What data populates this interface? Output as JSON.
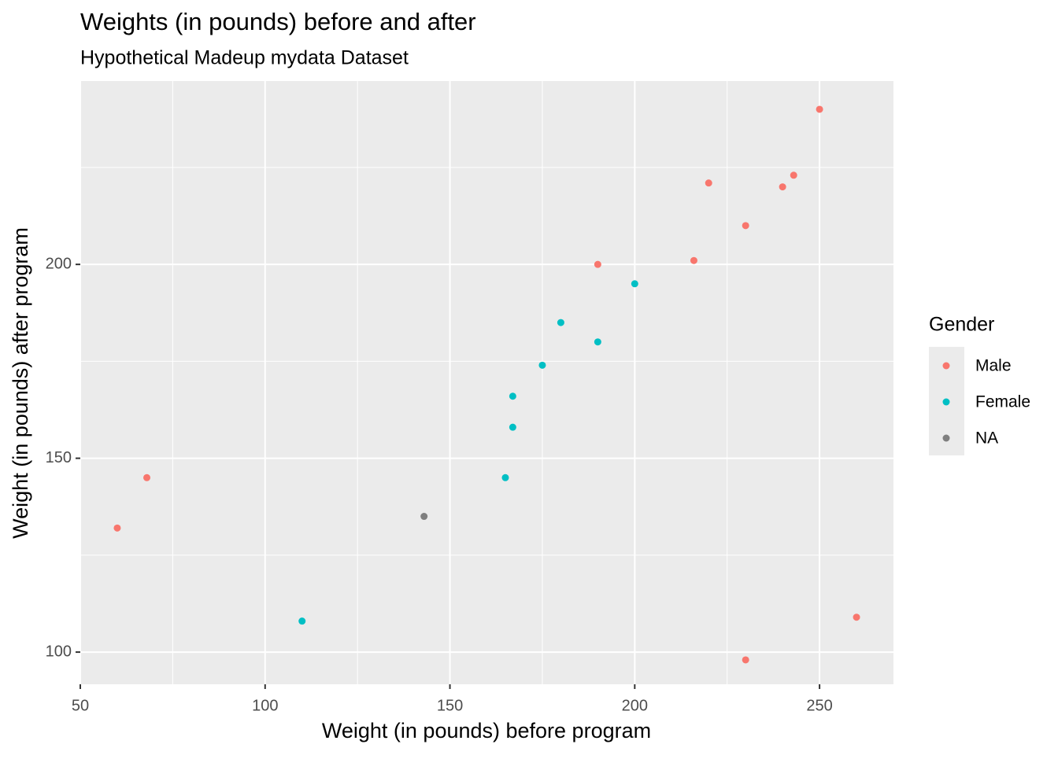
{
  "chart_data": {
    "type": "scatter",
    "title": "Weights (in pounds) before and after",
    "subtitle": "Hypothetical Madeup mydata Dataset",
    "x_label": "Weight (in pounds) before program",
    "y_label": "Weight (in pounds) after program",
    "legend_title": "Gender",
    "legend_position": "right",
    "grid": true,
    "xlim": [
      50,
      270
    ],
    "ylim": [
      91.7,
      247.3
    ],
    "xticks": [
      50,
      100,
      150,
      200,
      250
    ],
    "yticks": [
      100,
      150,
      200
    ],
    "xminor": [
      75,
      125,
      175,
      225
    ],
    "yminor": [
      125,
      175,
      225
    ],
    "series": [
      {
        "name": "Male",
        "color": "#F8766D",
        "x": [
          60,
          68,
          190,
          216,
          220,
          230,
          240,
          243,
          250,
          230,
          260
        ],
        "values": [
          132,
          145,
          200,
          201,
          221,
          210,
          220,
          223,
          240,
          98,
          109
        ]
      },
      {
        "name": "Female",
        "color": "#00BFC4",
        "x": [
          110,
          165,
          167,
          167,
          175,
          180,
          190,
          200
        ],
        "values": [
          108,
          145,
          158,
          166,
          174,
          185,
          180,
          195
        ]
      },
      {
        "name": "NA",
        "color": "#7F7F7F",
        "x": [
          143
        ],
        "values": [
          135
        ]
      }
    ]
  }
}
